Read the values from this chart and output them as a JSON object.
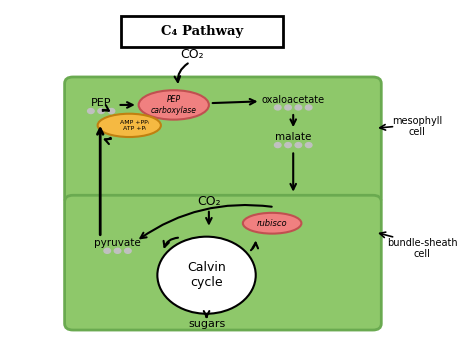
{
  "title": "C₄ Pathway",
  "bg_color": "#ffffff",
  "mesophyll_color": "#8ec86a",
  "bundle_sheath_color": "#8ec86a",
  "cell_border_color": "#6aaa50",
  "pep_carboxylase_fill": "#f08080",
  "pep_carboxylase_text": "PEP\ncarboxylase",
  "rubisco_fill": "#f08080",
  "rubisco_text": "rubisco",
  "atp_fill": "#f5b942",
  "atp_text1": "AMP +PPᵢ",
  "atp_text2": "ATP +Pᵢ",
  "calvin_text": "Calvin\ncycle",
  "co2_top": "CO₂",
  "pep": "PEP",
  "oxaloacetate": "oxaloacetate",
  "malate": "malate",
  "pyruvate": "pyruvate",
  "co2_bottom": "CO₂",
  "sugars": "sugars",
  "mesophyll": "mesophyll\ncell",
  "bundle_sheath": "bundle-sheath\ncell"
}
